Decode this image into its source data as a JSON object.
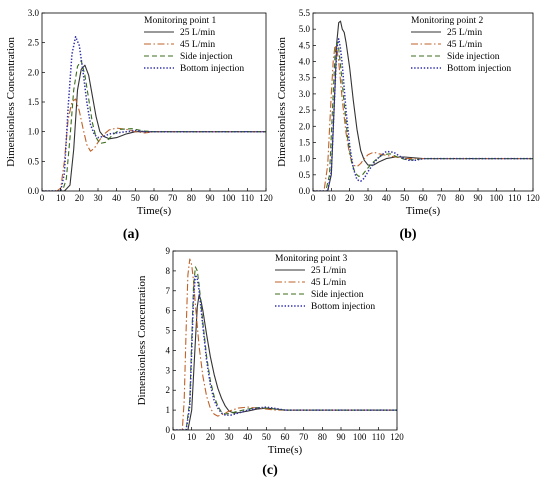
{
  "chart_data": [
    {
      "type": "line",
      "panel_label": "(a)",
      "xlabel": "Time(s)",
      "ylabel": "Dimensionless Concentration",
      "xlim": [
        0,
        120
      ],
      "ylim": [
        0,
        3.0
      ],
      "xticks": [
        "0",
        "10",
        "20",
        "30",
        "40",
        "50",
        "60",
        "70",
        "80",
        "90",
        "100",
        "110",
        "120"
      ],
      "yticks": [
        "0.0",
        "0.5",
        "1.0",
        "1.5",
        "2.0",
        "2.5",
        "3.0"
      ],
      "legend_title": "Monitoring point 1",
      "legend_position": "top-right",
      "series": [
        {
          "name": "25 L/min",
          "color": "#333333",
          "dash": "solid",
          "x": [
            0,
            12,
            15,
            17,
            19,
            21,
            23,
            25,
            27,
            29,
            31,
            33,
            36,
            40,
            45,
            50,
            60,
            70,
            80,
            90,
            100,
            110,
            120
          ],
          "y": [
            0,
            0,
            0.1,
            0.7,
            1.7,
            2.05,
            2.12,
            1.95,
            1.6,
            1.25,
            1.0,
            0.92,
            0.88,
            0.9,
            0.96,
            1.0,
            1.0,
            1.0,
            1.0,
            1.0,
            1.0,
            1.0,
            1.0
          ]
        },
        {
          "name": "45 L/min",
          "color": "#c0622a",
          "dash": "dashdot",
          "x": [
            0,
            8,
            10,
            12,
            14,
            16,
            18,
            20,
            22,
            24,
            26,
            28,
            30,
            33,
            36,
            40,
            45,
            50,
            55,
            60,
            70,
            80,
            90,
            100,
            110,
            120
          ],
          "y": [
            0,
            0,
            0.05,
            0.5,
            1.2,
            1.5,
            1.55,
            1.35,
            1.05,
            0.78,
            0.67,
            0.72,
            0.82,
            0.95,
            1.03,
            1.06,
            1.04,
            1.0,
            0.98,
            1.0,
            1.0,
            1.0,
            1.0,
            1.0,
            1.0,
            1.0
          ]
        },
        {
          "name": "Side injection",
          "color": "#3b6e1d",
          "dash": "dash",
          "x": [
            0,
            11,
            13,
            15,
            17,
            19,
            21,
            23,
            25,
            27,
            29,
            31,
            34,
            38,
            42,
            48,
            55,
            60,
            70,
            80,
            90,
            100,
            110,
            120
          ],
          "y": [
            0,
            0,
            0.2,
            0.9,
            1.7,
            2.1,
            2.2,
            1.95,
            1.55,
            1.15,
            0.9,
            0.8,
            0.82,
            0.95,
            1.04,
            1.05,
            1.01,
            1.0,
            1.0,
            1.0,
            1.0,
            1.0,
            1.0,
            1.0
          ]
        },
        {
          "name": "Bottom injection",
          "color": "#2e2ea8",
          "dash": "dot",
          "x": [
            0,
            10,
            12,
            14,
            16,
            18,
            20,
            22,
            24,
            26,
            28,
            30,
            33,
            36,
            40,
            45,
            50,
            55,
            60,
            70,
            80,
            90,
            100,
            110,
            120
          ],
          "y": [
            0,
            0,
            0.3,
            1.4,
            2.3,
            2.6,
            2.45,
            2.0,
            1.5,
            1.12,
            0.95,
            0.9,
            0.92,
            0.96,
            0.98,
            1.0,
            1.02,
            1.0,
            1.0,
            1.0,
            1.0,
            1.0,
            1.0,
            1.0,
            1.0
          ]
        }
      ]
    },
    {
      "type": "line",
      "panel_label": "(b)",
      "xlabel": "Time(s)",
      "ylabel": "Dimensionless Concentration",
      "xlim": [
        0,
        120
      ],
      "ylim": [
        0,
        5.5
      ],
      "xticks": [
        "0",
        "10",
        "20",
        "30",
        "40",
        "50",
        "60",
        "70",
        "80",
        "90",
        "100",
        "110",
        "120"
      ],
      "yticks": [
        "0.0",
        "0.5",
        "1.0",
        "1.5",
        "2.0",
        "2.5",
        "3.0",
        "3.5",
        "4.0",
        "4.5",
        "5.0",
        "5.5"
      ],
      "legend_title": "Monitoring point 2",
      "legend_position": "top-right",
      "series": [
        {
          "name": "25 L/min",
          "color": "#333333",
          "dash": "solid",
          "x": [
            0,
            8,
            10,
            12,
            13,
            14,
            15,
            16,
            17,
            18,
            20,
            22,
            24,
            26,
            28,
            30,
            33,
            36,
            40,
            45,
            50,
            60,
            70,
            80,
            90,
            100,
            110,
            120
          ],
          "y": [
            0,
            0,
            0.5,
            3.2,
            4.6,
            5.2,
            5.25,
            5.0,
            4.9,
            4.6,
            3.8,
            2.8,
            1.9,
            1.25,
            0.95,
            0.8,
            0.8,
            0.9,
            1.0,
            1.05,
            1.05,
            1.0,
            1.0,
            1.0,
            1.0,
            1.0,
            1.0,
            1.0
          ]
        },
        {
          "name": "45 L/min",
          "color": "#c0622a",
          "dash": "dashdot",
          "x": [
            0,
            6,
            8,
            10,
            11,
            12,
            13,
            14,
            16,
            18,
            20,
            22,
            24,
            26,
            28,
            30,
            33,
            36,
            40,
            45,
            50,
            60,
            70,
            80,
            90,
            100,
            110,
            120
          ],
          "y": [
            0,
            0,
            0.8,
            3.0,
            4.0,
            4.5,
            4.4,
            4.0,
            2.8,
            1.8,
            1.1,
            0.8,
            0.75,
            0.85,
            1.0,
            1.12,
            1.2,
            1.15,
            1.1,
            1.05,
            1.0,
            1.0,
            1.0,
            1.0,
            1.0,
            1.0,
            1.0,
            1.0
          ]
        },
        {
          "name": "Side injection",
          "color": "#3b6e1d",
          "dash": "dash",
          "x": [
            0,
            7,
            9,
            11,
            12,
            13,
            14,
            15,
            17,
            19,
            21,
            23,
            25,
            27,
            29,
            32,
            35,
            38,
            42,
            46,
            50,
            55,
            60,
            70,
            80,
            90,
            100,
            110,
            120
          ],
          "y": [
            0,
            0,
            0.5,
            3.0,
            4.2,
            4.6,
            4.4,
            3.9,
            2.7,
            1.6,
            0.9,
            0.55,
            0.45,
            0.5,
            0.65,
            0.85,
            1.0,
            1.12,
            1.15,
            1.05,
            0.98,
            0.96,
            1.0,
            1.0,
            1.0,
            1.0,
            1.0,
            1.0,
            1.0
          ]
        },
        {
          "name": "Bottom injection",
          "color": "#2e2ea8",
          "dash": "dot",
          "x": [
            0,
            8,
            10,
            12,
            13,
            14,
            15,
            16,
            18,
            20,
            22,
            24,
            26,
            28,
            30,
            33,
            36,
            40,
            44,
            48,
            52,
            56,
            60,
            70,
            80,
            90,
            100,
            110,
            120
          ],
          "y": [
            0,
            0,
            0.6,
            3.2,
            4.4,
            4.7,
            4.4,
            3.9,
            2.5,
            1.4,
            0.7,
            0.35,
            0.3,
            0.4,
            0.6,
            0.85,
            1.05,
            1.22,
            1.2,
            1.05,
            0.95,
            0.95,
            1.0,
            1.0,
            1.0,
            1.0,
            1.0,
            1.0,
            1.0
          ]
        }
      ]
    },
    {
      "type": "line",
      "panel_label": "(c)",
      "xlabel": "Time(s)",
      "ylabel": "Dimensionless Concentration",
      "xlim": [
        0,
        120
      ],
      "ylim": [
        0,
        9
      ],
      "xticks": [
        "0",
        "10",
        "20",
        "30",
        "40",
        "50",
        "60",
        "70",
        "80",
        "90",
        "100",
        "110",
        "120"
      ],
      "yticks": [
        "0",
        "1",
        "2",
        "3",
        "4",
        "5",
        "6",
        "7",
        "8",
        "9"
      ],
      "legend_title": "Monitoring point 3",
      "legend_position": "top-right",
      "series": [
        {
          "name": "25 L/min",
          "color": "#333333",
          "dash": "solid",
          "x": [
            0,
            8,
            10,
            12,
            13,
            14,
            15,
            16,
            18,
            20,
            22,
            24,
            26,
            28,
            30,
            33,
            36,
            40,
            45,
            50,
            55,
            60,
            70,
            80,
            90,
            100,
            110,
            120
          ],
          "y": [
            0,
            0,
            1.0,
            4.5,
            6.2,
            6.8,
            6.5,
            6.0,
            4.8,
            3.7,
            2.8,
            2.1,
            1.6,
            1.2,
            0.95,
            0.85,
            0.88,
            0.95,
            1.05,
            1.1,
            1.05,
            1.0,
            1.0,
            1.0,
            1.0,
            1.0,
            1.0,
            1.0
          ]
        },
        {
          "name": "45 L/min",
          "color": "#c0622a",
          "dash": "dashdot",
          "x": [
            0,
            5,
            6,
            7,
            8,
            9,
            10,
            11,
            12,
            14,
            16,
            18,
            20,
            22,
            24,
            27,
            30,
            35,
            40,
            45,
            50,
            55,
            60,
            70,
            80,
            90,
            100,
            110,
            120
          ],
          "y": [
            0,
            0,
            1.5,
            5.0,
            7.8,
            8.6,
            8.3,
            7.5,
            6.3,
            4.2,
            2.7,
            1.7,
            1.1,
            0.8,
            0.7,
            0.8,
            0.95,
            1.1,
            1.15,
            1.1,
            1.05,
            1.0,
            1.0,
            1.0,
            1.0,
            1.0,
            1.0,
            1.0,
            1.0
          ]
        },
        {
          "name": "Side injection",
          "color": "#3b6e1d",
          "dash": "dash",
          "x": [
            0,
            7,
            9,
            10,
            11,
            12,
            13,
            14,
            16,
            18,
            20,
            22,
            24,
            26,
            28,
            31,
            35,
            40,
            45,
            50,
            55,
            60,
            70,
            80,
            90,
            100,
            110,
            120
          ],
          "y": [
            0,
            0,
            1.5,
            4.5,
            7.2,
            8.2,
            8.0,
            7.3,
            5.4,
            3.7,
            2.5,
            1.7,
            1.2,
            0.9,
            0.8,
            0.85,
            0.95,
            1.05,
            1.12,
            1.1,
            1.05,
            1.0,
            1.0,
            1.0,
            1.0,
            1.0,
            1.0,
            1.0
          ]
        },
        {
          "name": "Bottom injection",
          "color": "#2e2ea8",
          "dash": "dot",
          "x": [
            0,
            7,
            9,
            10,
            11,
            12,
            13,
            14,
            16,
            18,
            20,
            22,
            24,
            26,
            28,
            31,
            35,
            40,
            45,
            50,
            55,
            60,
            70,
            80,
            90,
            100,
            110,
            120
          ],
          "y": [
            0,
            0,
            1.2,
            4.0,
            6.6,
            7.8,
            7.6,
            7.0,
            5.2,
            3.5,
            2.3,
            1.5,
            1.1,
            0.85,
            0.75,
            0.75,
            0.85,
            1.0,
            1.1,
            1.15,
            1.08,
            1.0,
            1.0,
            1.0,
            1.0,
            1.0,
            1.0,
            1.0
          ]
        }
      ]
    }
  ]
}
